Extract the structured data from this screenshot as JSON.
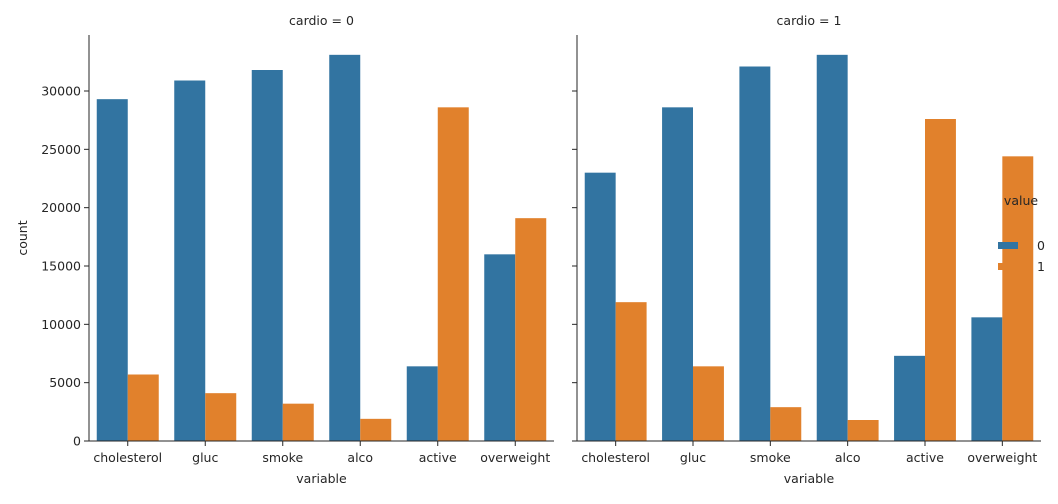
{
  "chart_data": {
    "type": "bar",
    "categories": [
      "cholesterol",
      "gluc",
      "smoke",
      "alco",
      "active",
      "overweight"
    ],
    "xlabel": "variable",
    "ylabel": "count",
    "ylim": [
      0,
      34800
    ],
    "yticks": [
      0,
      5000,
      10000,
      15000,
      20000,
      25000,
      30000
    ],
    "legend": {
      "title": "value",
      "placement": "right",
      "entries": [
        {
          "label": "0",
          "color": "#3274a1"
        },
        {
          "label": "1",
          "color": "#e1812c"
        }
      ]
    },
    "facets": [
      {
        "title": "cardio = 0",
        "series": [
          {
            "name": "0",
            "color": "#3274a1",
            "values": [
              29300,
              30900,
              31800,
              33100,
              6400,
              16000
            ]
          },
          {
            "name": "1",
            "color": "#e1812c",
            "values": [
              5700,
              4100,
              3200,
              1900,
              28600,
              19100
            ]
          }
        ]
      },
      {
        "title": "cardio = 1",
        "series": [
          {
            "name": "0",
            "color": "#3274a1",
            "values": [
              23000,
              28600,
              32100,
              33100,
              7300,
              10600
            ]
          },
          {
            "name": "1",
            "color": "#e1812c",
            "values": [
              11900,
              6400,
              2900,
              1800,
              27600,
              24400
            ]
          }
        ]
      }
    ]
  }
}
